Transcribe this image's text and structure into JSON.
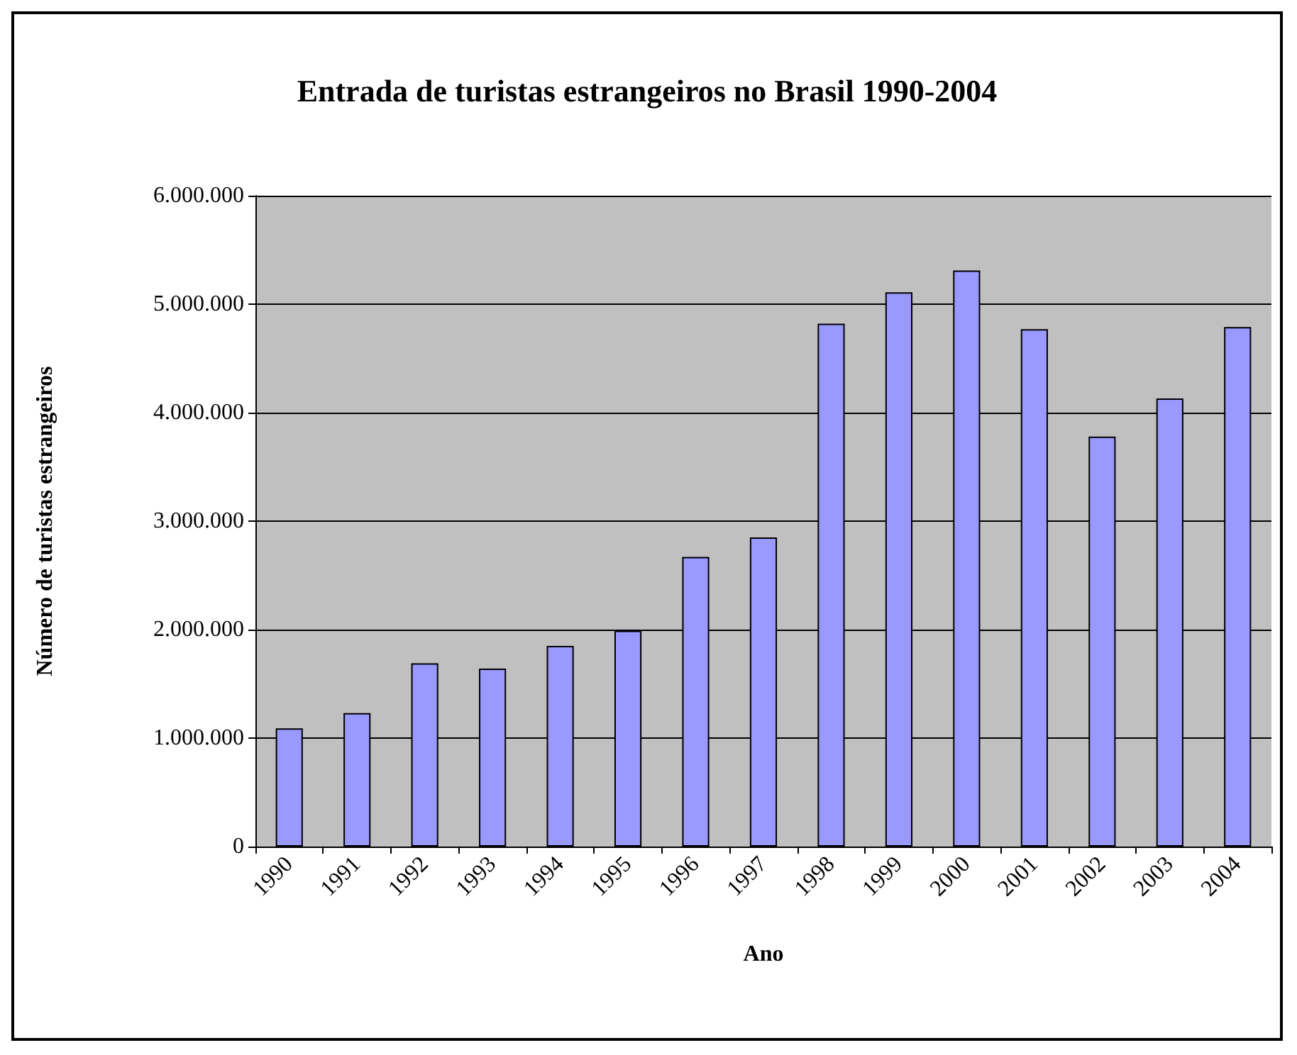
{
  "chart_data": {
    "type": "bar",
    "title": "Entrada de turistas estrangeiros no Brasil 1990-2004",
    "xlabel": "Ano",
    "ylabel": "Número de turistas estrangeiros",
    "categories": [
      "1990",
      "1991",
      "1992",
      "1993",
      "1994",
      "1995",
      "1996",
      "1997",
      "1998",
      "1999",
      "2000",
      "2001",
      "2002",
      "2003",
      "2004"
    ],
    "values": [
      1090000,
      1230000,
      1690000,
      1640000,
      1850000,
      1990000,
      2670000,
      2850000,
      4820000,
      5110000,
      5310000,
      4770000,
      3780000,
      4130000,
      4790000
    ],
    "color": "#9999ff",
    "ylim": [
      0,
      6000000
    ],
    "yticks": [
      0,
      {
        "value": 1000000,
        "label": "1.000.000"
      },
      {
        "value": 2000000,
        "label": "2.000.000"
      },
      {
        "value": 3000000,
        "label": "3.000.000"
      },
      {
        "value": 4000000,
        "label": "4.000.000"
      },
      {
        "value": 5000000,
        "label": "5.000.000"
      },
      {
        "value": 6000000,
        "label": "6.000.000"
      }
    ],
    "grid": "y"
  }
}
